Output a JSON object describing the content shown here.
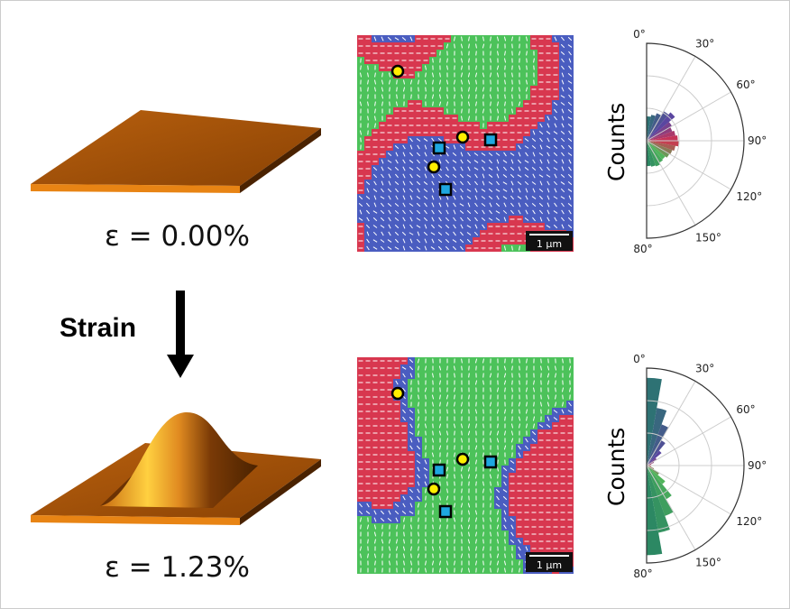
{
  "panels": {
    "top": {
      "strain_label": "ε = 0.00%",
      "scale_bar": "1 µm"
    },
    "bottom": {
      "strain_label": "ε = 1.23%",
      "scale_bar": "1 µm"
    }
  },
  "arrow_label": "Strain",
  "polar_ylabel": "Counts",
  "polar_ticks": [
    "0°",
    "30°",
    "60°",
    "90°",
    "120°",
    "150°",
    "80°"
  ],
  "colors": {
    "plate_top": "#a8520a",
    "plate_front": "#e07810",
    "plate_side": "#4a2200",
    "domain_red": "#d8374f",
    "domain_green": "#4cc25a",
    "domain_blue": "#4a5dc0",
    "marker_circle": "#ffee00",
    "marker_square": "#1ea7e0"
  },
  "chart_data": [
    {
      "type": "polar-histogram",
      "panel": "top",
      "ylabel": "Counts",
      "theta_range_deg": [
        0,
        180
      ],
      "theta_ticks": [
        "0°",
        "30°",
        "60°",
        "90°",
        "120°",
        "150°",
        "80°"
      ],
      "bins_deg": [
        0,
        10,
        20,
        30,
        40,
        50,
        60,
        70,
        80,
        90,
        100,
        110,
        120,
        130,
        140,
        150,
        160,
        170
      ],
      "relative_counts": [
        0.25,
        0.27,
        0.3,
        0.35,
        0.38,
        0.3,
        0.28,
        0.3,
        0.32,
        0.33,
        0.3,
        0.28,
        0.27,
        0.25,
        0.26,
        0.28,
        0.27,
        0.26
      ]
    },
    {
      "type": "polar-histogram",
      "panel": "bottom",
      "ylabel": "Counts",
      "theta_range_deg": [
        0,
        180
      ],
      "theta_ticks": [
        "0°",
        "30°",
        "60°",
        "90°",
        "120°",
        "150°",
        "80°"
      ],
      "bins_deg": [
        0,
        10,
        20,
        30,
        40,
        50,
        60,
        70,
        80,
        90,
        100,
        110,
        120,
        130,
        140,
        150,
        160,
        170
      ],
      "relative_counts": [
        0.9,
        0.6,
        0.45,
        0.3,
        0.2,
        0.12,
        0.08,
        0.05,
        0.04,
        0.04,
        0.05,
        0.08,
        0.15,
        0.25,
        0.4,
        0.55,
        0.7,
        0.92
      ]
    }
  ]
}
